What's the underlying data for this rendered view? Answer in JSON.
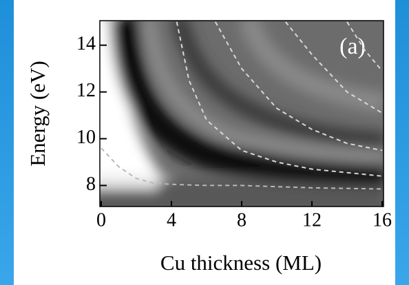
{
  "chart_data": {
    "type": "line",
    "annotation": "(a)",
    "x_label": "Cu thickness (ML)",
    "y_label": "Energy (eV)",
    "xlim": [
      0,
      16
    ],
    "ylim": [
      7.1,
      15.05
    ],
    "xticks": [
      0,
      4,
      8,
      12,
      16
    ],
    "yticks": [
      8,
      10,
      12,
      14
    ],
    "line_style": "dashed",
    "series": [
      {
        "color": "#b8b8b8",
        "x": [
          0,
          1,
          2,
          3,
          4,
          6,
          8,
          12,
          16
        ],
        "values": [
          9.6,
          8.8,
          8.3,
          8.1,
          8.05,
          8.0,
          8.0,
          7.9,
          7.85
        ]
      },
      {
        "color": "#d8d8d8",
        "x": [
          4.3,
          5,
          6,
          8,
          10,
          12,
          16
        ],
        "values": [
          15,
          12.5,
          10.8,
          9.5,
          9.0,
          8.7,
          8.4
        ]
      },
      {
        "color": "#d8d8d8",
        "x": [
          6.5,
          8,
          10,
          12,
          14,
          16
        ],
        "values": [
          15,
          13,
          11.3,
          10.4,
          9.8,
          9.5
        ]
      },
      {
        "color": "#d8d8d8",
        "x": [
          10.5,
          12,
          14,
          16
        ],
        "values": [
          15,
          13.6,
          12,
          11.1
        ]
      },
      {
        "color": "#d8d8d8",
        "x": [
          14,
          15,
          16
        ],
        "values": [
          15,
          13.8,
          12.9
        ]
      }
    ]
  }
}
